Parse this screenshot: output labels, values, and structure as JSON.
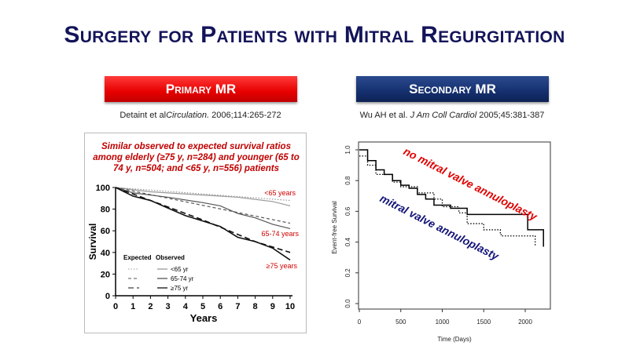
{
  "title": "Surgery for Patients with Mitral Regurgitation",
  "banners": {
    "primary": "Primary MR",
    "secondary": "Secondary MR",
    "primary_color": "#e80000",
    "secondary_color": "#15306e"
  },
  "citations": {
    "primary_authors": "Detaint et al",
    "primary_journal": "Circulation.",
    "primary_ref": " 2006;114:265-272",
    "secondary_authors": "Wu AH et al. ",
    "secondary_journal": "J Am Coll Cardiol",
    "secondary_ref": " 2005;45:381-387"
  },
  "chart_data": [
    {
      "type": "line",
      "note": "Similar observed to expected survival ratios among elderly (≥75 y, n=284) and younger (65 to 74 y, n=504; and <65 y, n=556) patients",
      "xlabel": "Years",
      "ylabel": "Survival",
      "xlim": [
        0,
        10
      ],
      "ylim": [
        0,
        100
      ],
      "xticks": [
        "0",
        "1",
        "2",
        "3",
        "4",
        "5",
        "6",
        "7",
        "8",
        "9",
        "10"
      ],
      "yticks": [
        "0",
        "20",
        "40",
        "60",
        "80",
        "100"
      ],
      "legend": {
        "expected_header": "Expected",
        "observed_header": "Observed",
        "entries": [
          "<65 yr",
          "65-74 yr",
          "≥75 yr"
        ]
      },
      "annotations": [
        "<65 years",
        "65-74 years",
        "≥75 years"
      ],
      "series": [
        {
          "name": "Expected <65 yr",
          "style": "dotted",
          "color": "#999999",
          "x": [
            0,
            10
          ],
          "y": [
            100,
            88
          ]
        },
        {
          "name": "Observed <65 yr",
          "style": "solid",
          "color": "#999999",
          "x": [
            0,
            2,
            5,
            7,
            9,
            10
          ],
          "y": [
            100,
            96,
            93,
            91,
            87,
            83
          ]
        },
        {
          "name": "Expected 65-74 yr",
          "style": "dashed",
          "color": "#555555",
          "x": [
            0,
            10
          ],
          "y": [
            100,
            67
          ]
        },
        {
          "name": "Observed 65-74 yr",
          "style": "solid",
          "color": "#555555",
          "x": [
            0,
            1,
            3,
            5,
            6,
            7,
            8,
            9,
            10
          ],
          "y": [
            100,
            95,
            91,
            86,
            83,
            76,
            72,
            66,
            62
          ]
        },
        {
          "name": "Expected ≥75 yr",
          "style": "longdash",
          "color": "#111111",
          "x": [
            0,
            2,
            5,
            8,
            10
          ],
          "y": [
            100,
            88,
            70,
            50,
            40
          ]
        },
        {
          "name": "Observed ≥75 yr",
          "style": "solid",
          "color": "#111111",
          "x": [
            0,
            1,
            2,
            3,
            4,
            5,
            6,
            7,
            8,
            9,
            10
          ],
          "y": [
            100,
            92,
            88,
            81,
            74,
            69,
            64,
            54,
            50,
            44,
            33
          ]
        }
      ]
    },
    {
      "type": "line",
      "xlabel": "Time (Days)",
      "ylabel": "Event-free Survival",
      "xlim": [
        0,
        2300
      ],
      "ylim": [
        0,
        1
      ],
      "xticks": [
        "0",
        "500",
        "1000",
        "1500",
        "2000"
      ],
      "yticks": [
        "0.0",
        "0.2",
        "0.4",
        "0.6",
        "0.8",
        "1.0"
      ],
      "annotations": [
        {
          "text": "no mitral valve annuloplasty",
          "color": "#e00000"
        },
        {
          "text": "mitral valve annuloplasty",
          "color": "#14147a"
        }
      ],
      "series": [
        {
          "style": "solid",
          "color": "#000000",
          "x": [
            0,
            100,
            200,
            300,
            400,
            500,
            600,
            700,
            800,
            900,
            1100,
            1250,
            1300,
            2020,
            2030,
            2220,
            2220
          ],
          "y": [
            1,
            0.93,
            0.87,
            0.84,
            0.8,
            0.77,
            0.75,
            0.71,
            0.68,
            0.64,
            0.62,
            0.62,
            0.58,
            0.58,
            0.48,
            0.48,
            0.37
          ]
        },
        {
          "style": "dotted",
          "color": "#000000",
          "x": [
            0,
            100,
            200,
            400,
            500,
            700,
            900,
            1000,
            1200,
            1300,
            1500,
            1700,
            1710,
            2120,
            2120
          ],
          "y": [
            0.96,
            0.9,
            0.84,
            0.79,
            0.76,
            0.72,
            0.68,
            0.63,
            0.59,
            0.52,
            0.48,
            0.46,
            0.44,
            0.44,
            0.37
          ]
        }
      ]
    }
  ]
}
